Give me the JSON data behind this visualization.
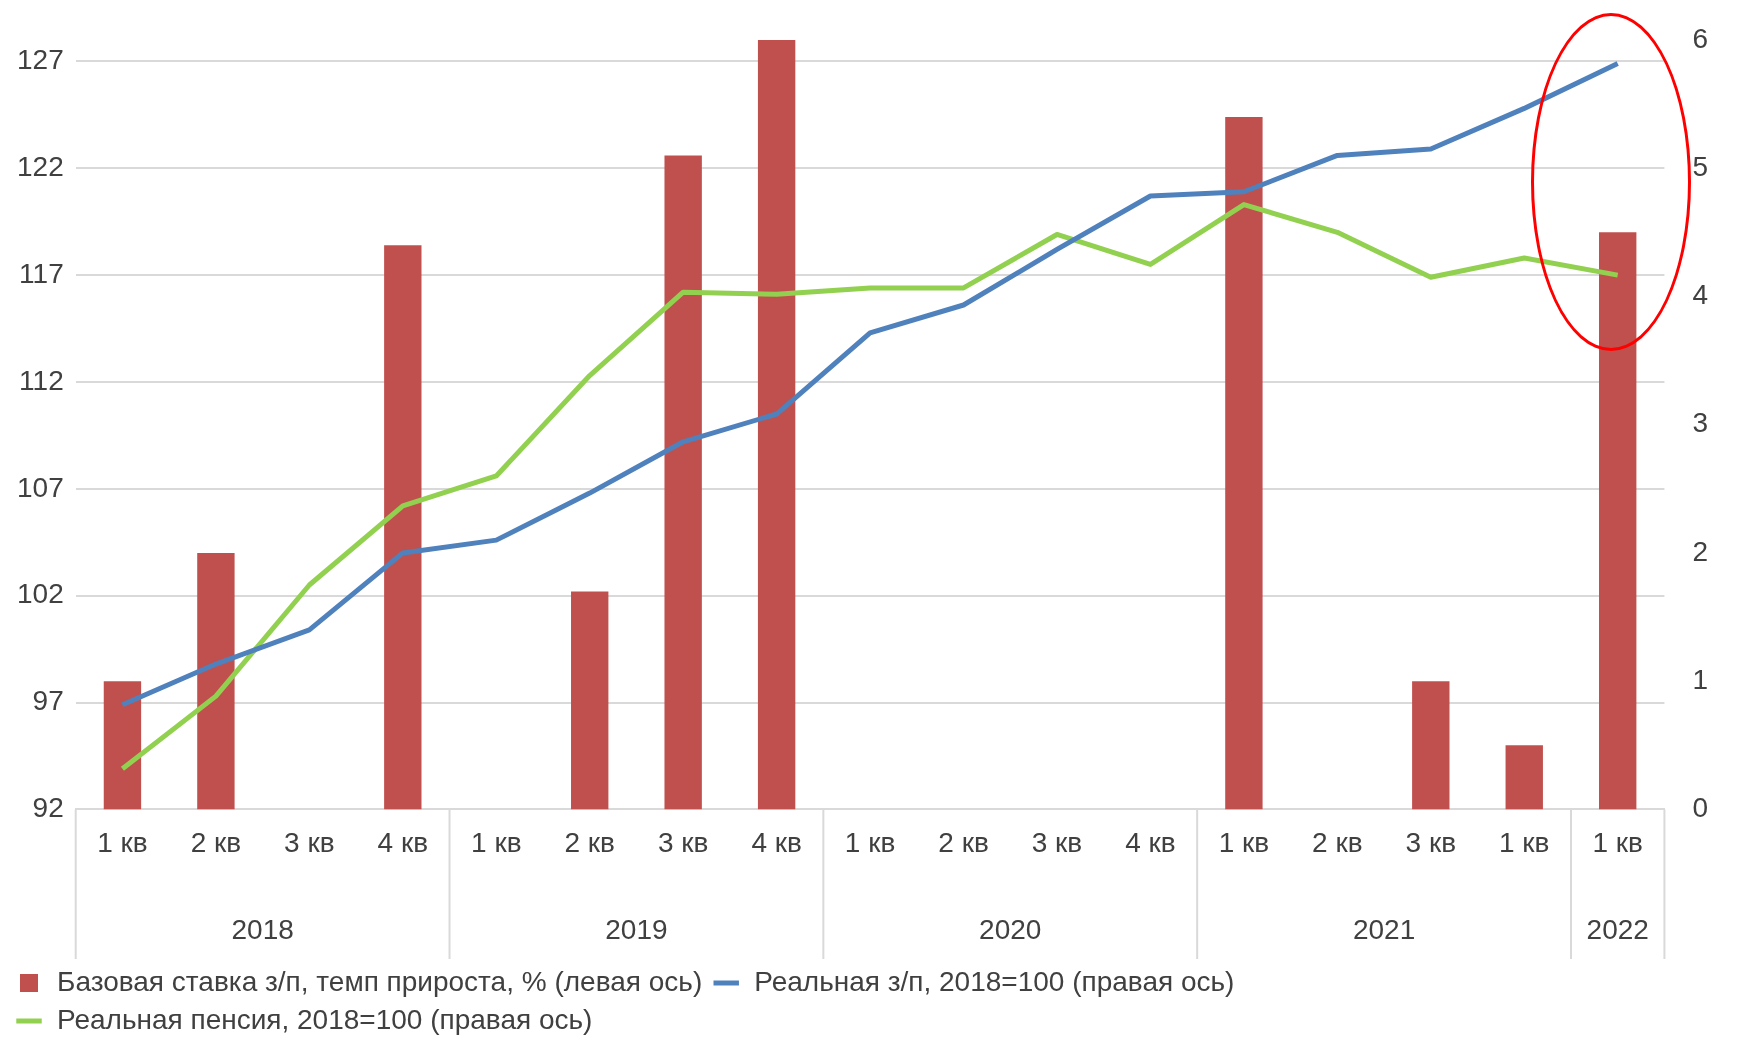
{
  "chart_data": {
    "type": "bar",
    "categories": [
      "1 кв",
      "2 кв",
      "3 кв",
      "4 кв",
      "1 кв",
      "2 кв",
      "3 кв",
      "4 кв",
      "1 кв",
      "2 кв",
      "3 кв",
      "4 кв",
      "1 кв",
      "2 кв",
      "3 кв",
      "1 кв",
      "1 кв"
    ],
    "annotations": [
      "2018",
      "2019",
      "2020",
      "2021",
      "2022"
    ],
    "series": [
      {
        "name": "Базовая ставка з/п, темп прироста, % (левая ось)",
        "axis": "y2",
        "color": "#c0504d",
        "values": [
          1.0,
          2.0,
          null,
          4.4,
          null,
          1.7,
          5.1,
          6.0,
          null,
          null,
          null,
          null,
          5.4,
          null,
          1.0,
          0.5,
          4.5
        ]
      },
      {
        "name": "Реальная з/п, 2018=100 (правая ось)",
        "type": "line",
        "color": "#4f81bd",
        "values": [
          96.9,
          98.8,
          100.4,
          104.0,
          104.6,
          106.8,
          109.2,
          110.5,
          114.3,
          115.6,
          118.2,
          120.7,
          120.9,
          122.6,
          122.9,
          124.8,
          126.9
        ]
      },
      {
        "name": "Реальная пенсия, 2018=100 (правая ось)",
        "type": "line",
        "color": "#92d050",
        "values": [
          93.9,
          97.3,
          102.5,
          106.2,
          107.6,
          112.3,
          116.2,
          116.1,
          116.4,
          116.4,
          118.9,
          117.5,
          120.3,
          119.0,
          116.9,
          117.8,
          117.0
        ]
      }
    ],
    "ylim": [
      92,
      128
    ],
    "yticks": [
      92,
      97,
      102,
      107,
      112,
      117,
      122,
      127
    ],
    "y2lim": [
      0,
      6
    ],
    "y2ticks": [
      0,
      1,
      2,
      3,
      4,
      5,
      6
    ],
    "grid": "y",
    "legend": "bottom",
    "marker": "none",
    "line_style": "solid"
  }
}
